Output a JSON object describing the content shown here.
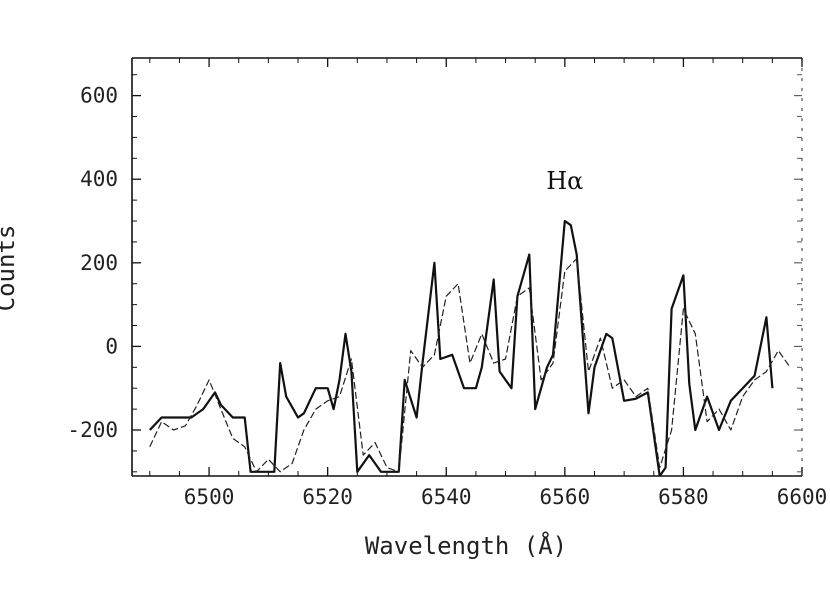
{
  "chart_data": {
    "type": "line",
    "xlabel": "Wavelength (Å)",
    "ylabel": "Counts",
    "xlim": [
      6487,
      6600
    ],
    "ylim": [
      -310,
      690
    ],
    "x_ticks": [
      {
        "value": 6500,
        "label": "6500"
      },
      {
        "value": 6520,
        "label": "6520"
      },
      {
        "value": 6540,
        "label": "6540"
      },
      {
        "value": 6560,
        "label": "6560"
      },
      {
        "value": 6580,
        "label": "6580"
      },
      {
        "value": 6600,
        "label": "6600"
      }
    ],
    "y_ticks": [
      {
        "value": 600,
        "label": "600"
      },
      {
        "value": 400,
        "label": "400"
      },
      {
        "value": 200,
        "label": "200"
      },
      {
        "value": 0,
        "label": "0"
      },
      {
        "value": -200,
        "label": "-200"
      }
    ],
    "grid": false,
    "annotations": [
      {
        "text": "Hα",
        "x": 6560,
        "y": 400
      }
    ],
    "series": [
      {
        "style": "solid",
        "color": "#111111",
        "x": [
          6490,
          6492,
          6495,
          6497,
          6499,
          6501,
          6502,
          6504,
          6506,
          6507,
          6509,
          6510,
          6511,
          6512,
          6513,
          6515,
          6516,
          6518,
          6520,
          6521,
          6522,
          6523,
          6524,
          6525,
          6527,
          6529,
          6531,
          6532,
          6533,
          6535,
          6536,
          6538,
          6539,
          6541,
          6543,
          6545,
          6546,
          6548,
          6549,
          6550,
          6551,
          6552,
          6554,
          6555,
          6557,
          6558,
          6560,
          6561,
          6562,
          6564,
          6565,
          6567,
          6568,
          6570,
          6572,
          6574,
          6576,
          6577,
          6578,
          6580,
          6581,
          6582,
          6584,
          6586,
          6588,
          6590,
          6592,
          6594,
          6595
        ],
        "y": [
          -200,
          -170,
          -170,
          -170,
          -150,
          -110,
          -140,
          -170,
          -170,
          -300,
          -300,
          -300,
          -300,
          -40,
          -120,
          -170,
          -160,
          -100,
          -100,
          -150,
          -80,
          30,
          -60,
          -300,
          -260,
          -300,
          -300,
          -300,
          -80,
          -170,
          -40,
          200,
          -30,
          -20,
          -100,
          -100,
          -50,
          160,
          -60,
          -80,
          -100,
          120,
          220,
          -150,
          -50,
          -20,
          300,
          290,
          220,
          -160,
          -50,
          30,
          20,
          -130,
          -125,
          -110,
          -310,
          -290,
          90,
          170,
          -90,
          -200,
          -120,
          -200,
          -130,
          -100,
          -70,
          70,
          -100
        ]
      },
      {
        "style": "dashed",
        "color": "#222222",
        "x": [
          6490,
          6492,
          6494,
          6496,
          6498,
          6500,
          6502,
          6504,
          6506,
          6508,
          6510,
          6512,
          6514,
          6516,
          6518,
          6520,
          6522,
          6524,
          6526,
          6528,
          6530,
          6532,
          6534,
          6536,
          6538,
          6540,
          6542,
          6544,
          6546,
          6548,
          6550,
          6552,
          6554,
          6556,
          6558,
          6560,
          6562,
          6564,
          6566,
          6568,
          6570,
          6572,
          6574,
          6576,
          6578,
          6580,
          6582,
          6584,
          6586,
          6588,
          6590,
          6592,
          6594,
          6596,
          6598
        ],
        "y": [
          -240,
          -180,
          -200,
          -190,
          -140,
          -80,
          -150,
          -220,
          -240,
          -300,
          -270,
          -300,
          -280,
          -200,
          -150,
          -130,
          -120,
          -30,
          -260,
          -230,
          -290,
          -300,
          -10,
          -50,
          -20,
          120,
          150,
          -40,
          30,
          -40,
          -30,
          120,
          140,
          -80,
          -40,
          180,
          210,
          -60,
          20,
          -100,
          -80,
          -120,
          -100,
          -290,
          -200,
          90,
          30,
          -180,
          -150,
          -200,
          -120,
          -80,
          -60,
          -10,
          -50
        ]
      }
    ]
  }
}
